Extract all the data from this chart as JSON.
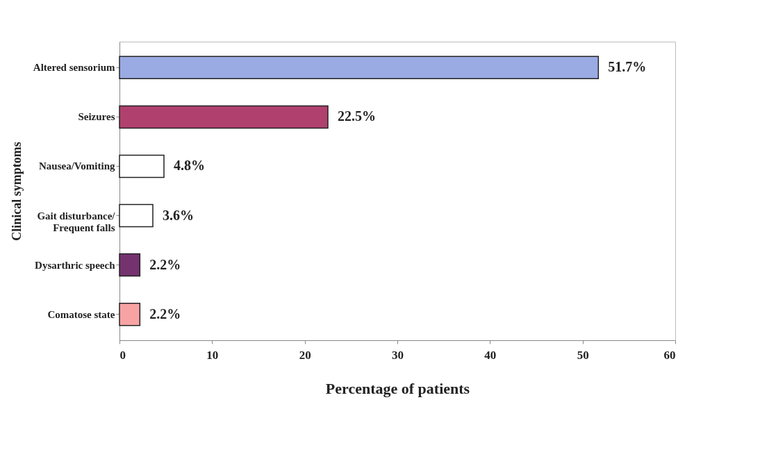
{
  "chart_data": {
    "type": "bar",
    "orientation": "horizontal",
    "xlabel": "Percentage of patients",
    "ylabel": "Clinical symptoms",
    "categories": [
      "Altered sensorium",
      "Seizures",
      "Nausea/Vomiting",
      "Gait disturbance/ Frequent falls",
      "Dysarthric speech",
      "Comatose state"
    ],
    "values": [
      51.7,
      22.5,
      4.8,
      3.6,
      2.2,
      2.2
    ],
    "colors": [
      "#9aabe3",
      "#b0416f",
      "#ffffff",
      "#ffffff",
      "#74326f",
      "#f7a3a3"
    ],
    "value_labels": [
      "51.7%",
      "22.5%",
      "4.8%",
      "3.6%",
      "2.2%",
      "2.2%"
    ],
    "xlim": [
      0,
      60
    ],
    "xticks": [
      0,
      10,
      20,
      30,
      40,
      50,
      60
    ]
  }
}
